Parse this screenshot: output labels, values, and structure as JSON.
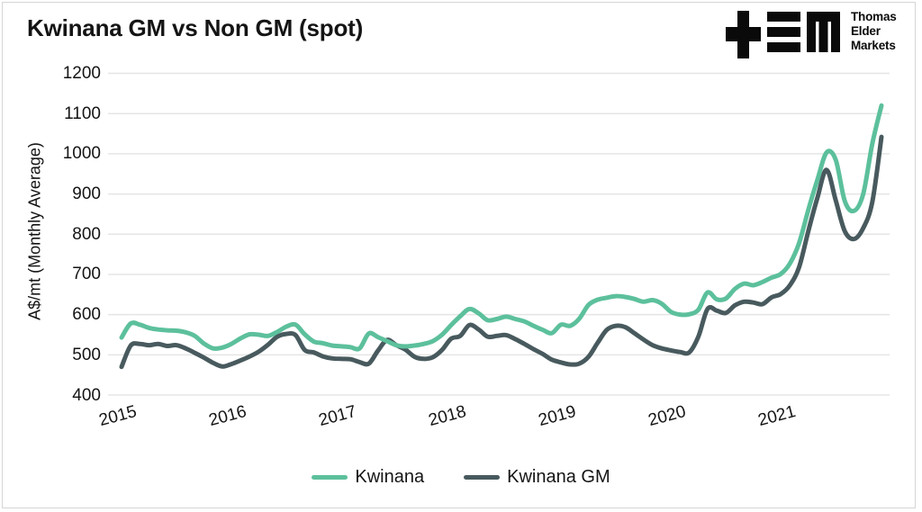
{
  "logo": {
    "lines": [
      "Thomas",
      "Elder",
      "Markets"
    ]
  },
  "chart_data": {
    "type": "line",
    "title": "Kwinana GM vs Non GM (spot)",
    "xlabel": "",
    "ylabel": "A$/mt (Monthly Average)",
    "ylim": [
      400,
      1200
    ],
    "y_ticks": [
      400,
      500,
      600,
      700,
      800,
      900,
      1000,
      1100,
      1200
    ],
    "x_tick_labels": [
      "2015",
      "2016",
      "2017",
      "2018",
      "2019",
      "2020",
      "2021"
    ],
    "x_start_year": 2015,
    "points_per_year": 12,
    "grid": true,
    "legend_position": "bottom",
    "grid_color": "#e5e5e5",
    "series": [
      {
        "name": "Kwinana",
        "color": "#5cc09c",
        "values": [
          543,
          578,
          575,
          567,
          563,
          561,
          560,
          556,
          547,
          528,
          516,
          518,
          527,
          541,
          551,
          550,
          547,
          557,
          570,
          575,
          551,
          533,
          529,
          523,
          521,
          519,
          516,
          553,
          544,
          534,
          524,
          521,
          523,
          527,
          534,
          550,
          574,
          596,
          614,
          603,
          586,
          589,
          595,
          589,
          583,
          572,
          562,
          554,
          575,
          572,
          590,
          624,
          637,
          642,
          646,
          644,
          639,
          632,
          636,
          627,
          607,
          600,
          601,
          612,
          655,
          638,
          640,
          664,
          677,
          673,
          681,
          692,
          701,
          727,
          778,
          860,
          935,
          1003,
          985,
          882,
          858,
          900,
          1025,
          1120
        ]
      },
      {
        "name": "Kwinana GM",
        "color": "#485a5e",
        "values": [
          470,
          523,
          527,
          524,
          527,
          522,
          524,
          516,
          505,
          493,
          480,
          471,
          477,
          486,
          496,
          508,
          525,
          545,
          552,
          549,
          512,
          506,
          496,
          491,
          490,
          489,
          482,
          478,
          510,
          537,
          524,
          513,
          495,
          490,
          494,
          512,
          540,
          547,
          574,
          563,
          545,
          547,
          549,
          539,
          527,
          514,
          502,
          488,
          481,
          476,
          478,
          495,
          530,
          562,
          572,
          569,
          554,
          538,
          524,
          516,
          511,
          507,
          506,
          545,
          614,
          610,
          604,
          623,
          632,
          630,
          626,
          643,
          651,
          673,
          718,
          807,
          890,
          960,
          884,
          807,
          788,
          815,
          880,
          1042
        ]
      }
    ]
  }
}
